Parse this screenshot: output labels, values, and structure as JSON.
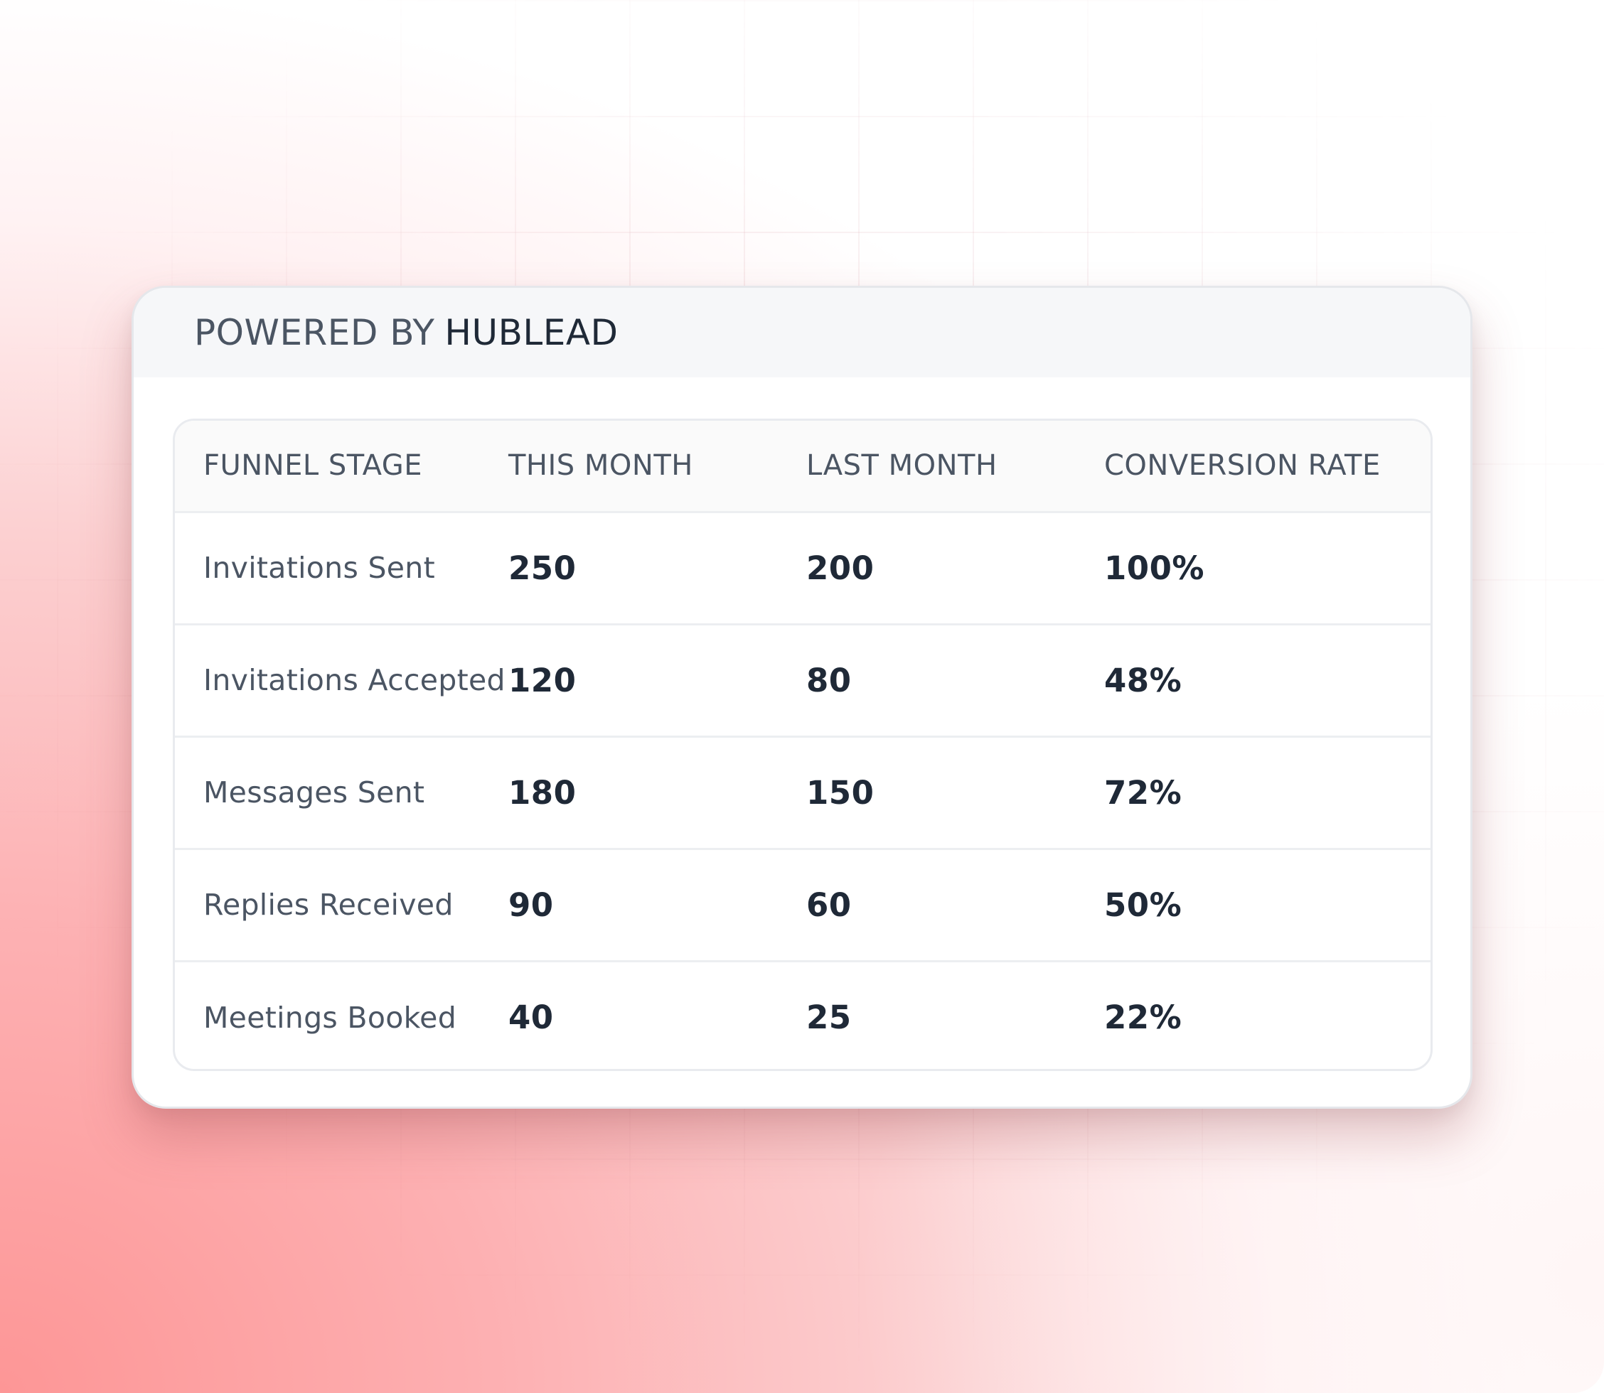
{
  "header": {
    "powered_prefix": "POWERED BY",
    "powered_brand": "HUBLEAD"
  },
  "table": {
    "columns": [
      "FUNNEL STAGE",
      "THIS MONTH",
      "LAST MONTH",
      "CONVERSION RATE"
    ],
    "rows": [
      {
        "stage": "Invitations Sent",
        "this_month": "250",
        "last_month": "200",
        "conversion_rate": "100%"
      },
      {
        "stage": "Invitations Accepted",
        "this_month": "120",
        "last_month": "80",
        "conversion_rate": "48%"
      },
      {
        "stage": "Messages Sent",
        "this_month": "180",
        "last_month": "150",
        "conversion_rate": "72%"
      },
      {
        "stage": "Replies Received",
        "this_month": "90",
        "last_month": "60",
        "conversion_rate": "50%"
      },
      {
        "stage": "Meetings Booked",
        "this_month": "40",
        "last_month": "25",
        "conversion_rate": "22%"
      }
    ]
  },
  "colors": {
    "gradient_primary": "#fd9696",
    "text_dark": "#1f2937",
    "text_muted": "#4b5563",
    "header_bg": "#f6f7f9"
  }
}
